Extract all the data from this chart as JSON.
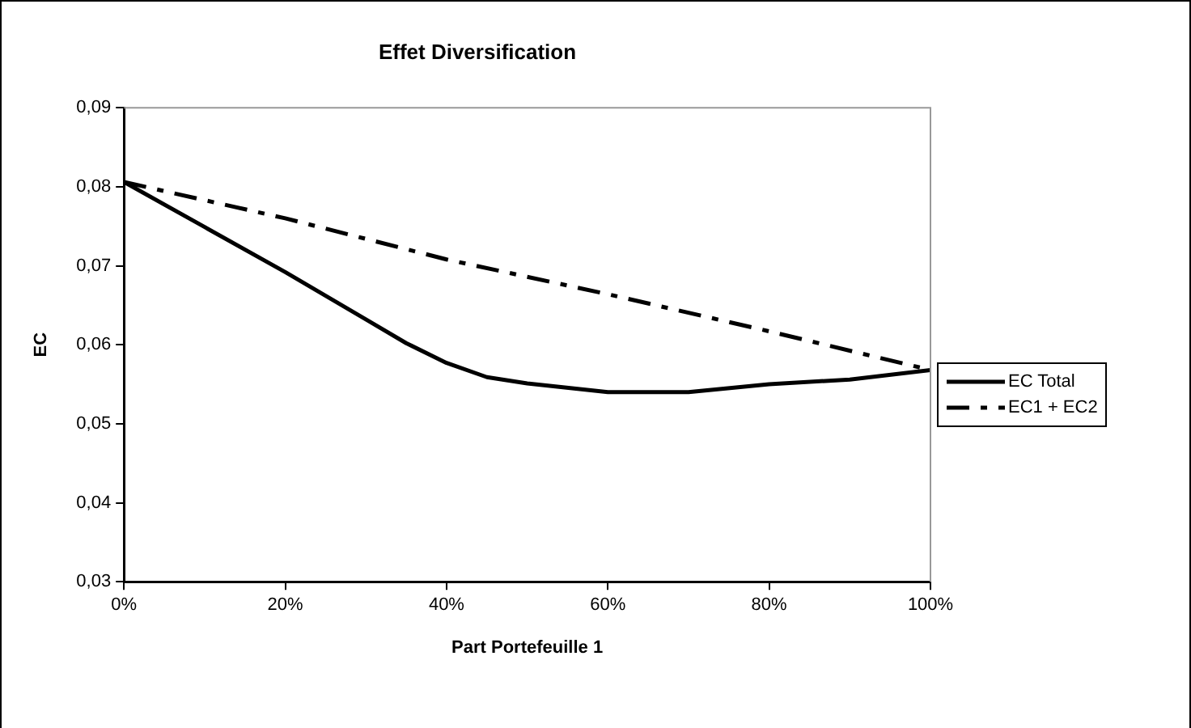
{
  "chart_data": {
    "type": "line",
    "title": "Effet Diversification",
    "xlabel": "Part Portefeuille 1",
    "ylabel": "EC",
    "x": [
      0,
      10,
      20,
      30,
      35,
      40,
      45,
      50,
      60,
      70,
      80,
      90,
      100
    ],
    "series": [
      {
        "name": "EC Total",
        "color": "#000000",
        "line_style": "solid",
        "values": [
          0.0806,
          0.0749,
          0.0692,
          0.0632,
          0.0602,
          0.0577,
          0.0559,
          0.0551,
          0.054,
          0.054,
          0.055,
          0.0556,
          0.0568
        ]
      },
      {
        "name": "EC1 + EC2",
        "color": "#000000",
        "line_style": "dashed",
        "x": [
          0,
          20,
          40,
          60,
          80,
          100
        ],
        "values": [
          0.0806,
          0.076,
          0.0708,
          0.0664,
          0.0617,
          0.0568
        ]
      }
    ],
    "xlim": [
      0,
      100
    ],
    "xticks": [
      {
        "value": 0,
        "label": "0%"
      },
      {
        "value": 20,
        "label": "20%"
      },
      {
        "value": 40,
        "label": "40%"
      },
      {
        "value": 60,
        "label": "60%"
      },
      {
        "value": 80,
        "label": "80%"
      },
      {
        "value": 100,
        "label": "100%"
      }
    ],
    "ylim": [
      0.03,
      0.09
    ],
    "yticks": [
      {
        "value": 0.03,
        "label": "0,03"
      },
      {
        "value": 0.04,
        "label": "0,04"
      },
      {
        "value": 0.05,
        "label": "0,05"
      },
      {
        "value": 0.06,
        "label": "0,06"
      },
      {
        "value": 0.07,
        "label": "0,07"
      },
      {
        "value": 0.08,
        "label": "0,08"
      },
      {
        "value": 0.09,
        "label": "0,09"
      }
    ],
    "grid": false,
    "legend": "right",
    "marker": "none"
  }
}
